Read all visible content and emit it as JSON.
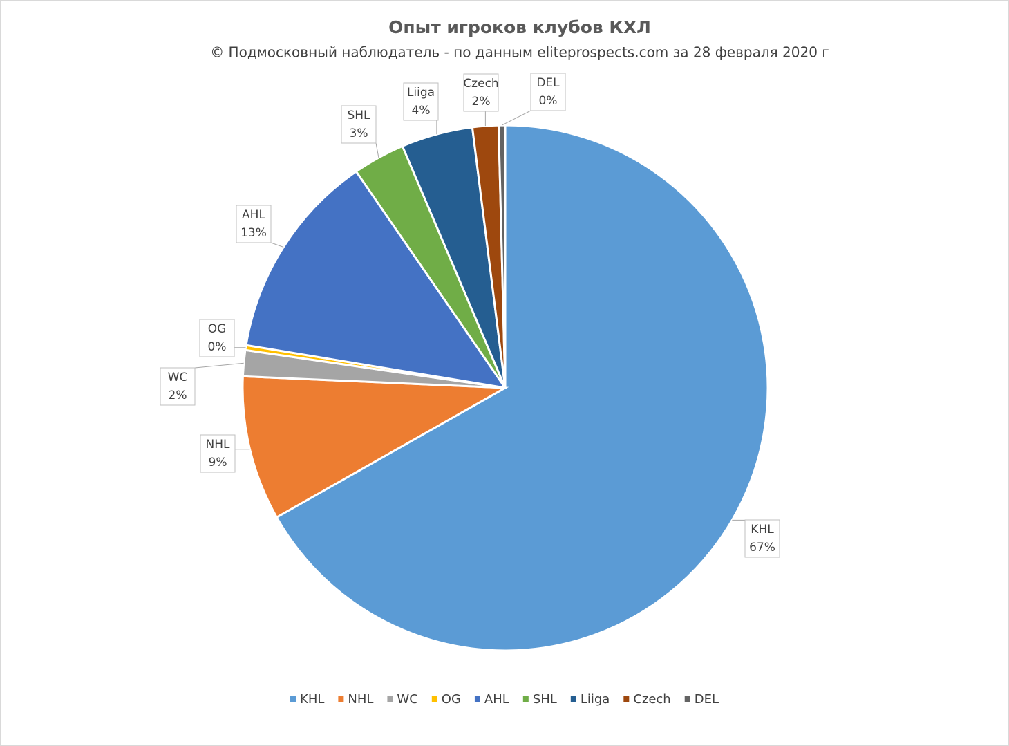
{
  "chart_data": {
    "type": "pie",
    "title": "Опыт игроков клубов КХЛ",
    "subtitle": "© Подмосковный наблюдатель - по данным eliteprospects.com за 28 февраля 2020 г",
    "categories": [
      "KHL",
      "NHL",
      "WC",
      "OG",
      "AHL",
      "SHL",
      "Liiga",
      "Czech",
      "DEL"
    ],
    "values": [
      66.8,
      8.9,
      1.6,
      0.3,
      12.8,
      3.2,
      4.4,
      1.6,
      0.4
    ],
    "value_labels": [
      "67%",
      "9%",
      "2%",
      "0%",
      "13%",
      "3%",
      "4%",
      "2%",
      "0%"
    ],
    "colors": [
      "#5b9bd5",
      "#ed7d31",
      "#a5a5a5",
      "#ffc000",
      "#4472c4",
      "#70ad47",
      "#255e91",
      "#9e480e",
      "#636363"
    ],
    "legend": "bottom"
  }
}
